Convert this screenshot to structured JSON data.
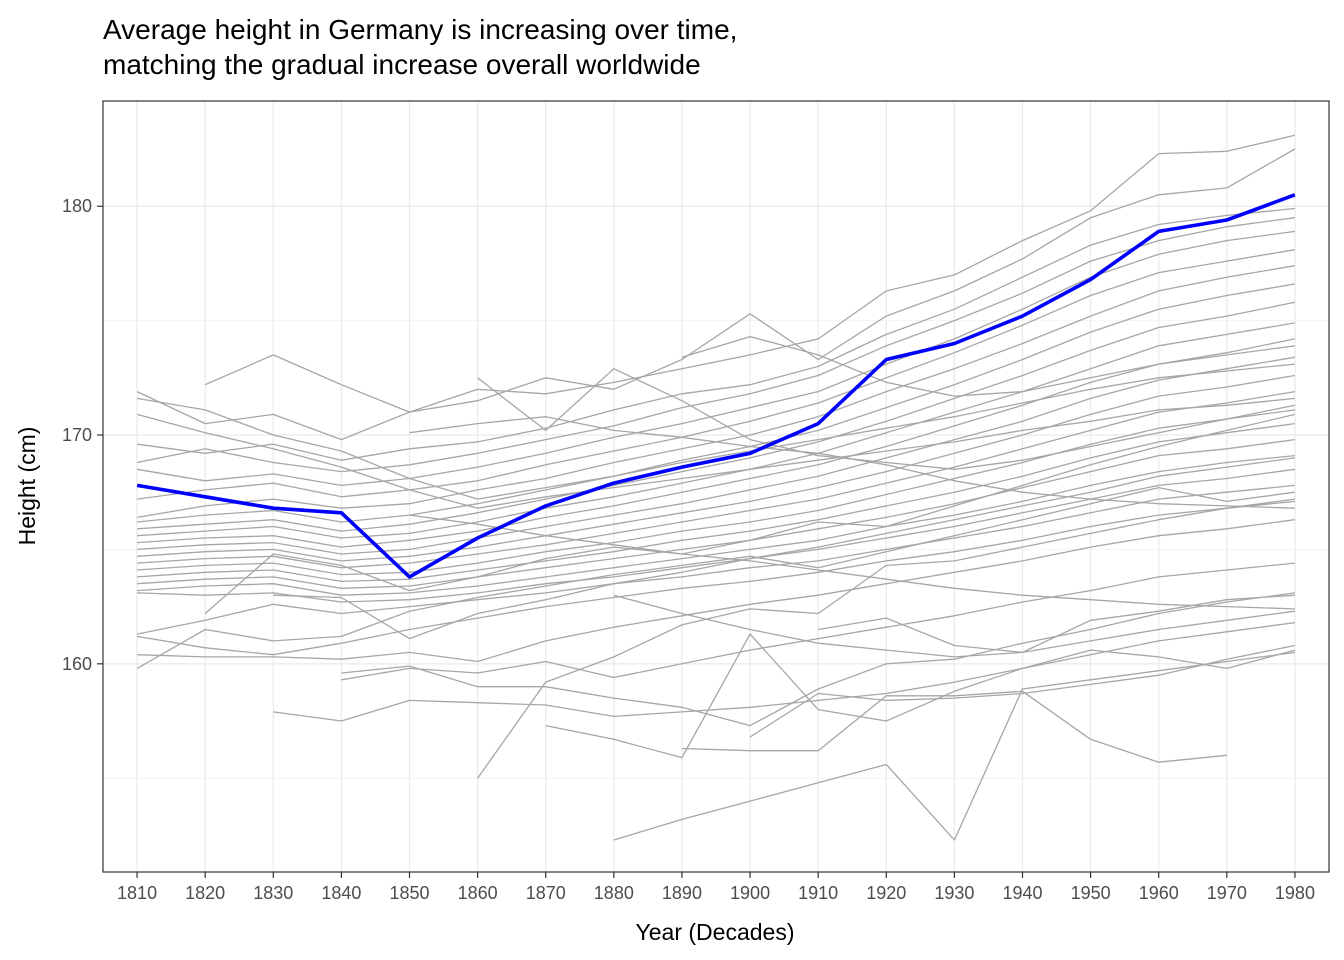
{
  "chart_data": {
    "type": "line",
    "title_lines": [
      "Average height in Germany is increasing over time,",
      "matching the gradual increase overall worldwide"
    ],
    "xlabel": "Year (Decades)",
    "ylabel": "Height (cm)",
    "x": [
      1810,
      1820,
      1830,
      1840,
      1850,
      1860,
      1870,
      1880,
      1890,
      1900,
      1910,
      1920,
      1930,
      1940,
      1950,
      1960,
      1970,
      1980
    ],
    "xlim": [
      1805,
      1985
    ],
    "ylim": [
      150.9,
      184.6
    ],
    "y_ticks": [
      160,
      170,
      180
    ],
    "grid": true,
    "legend": "none",
    "highlight": {
      "name": "Germany",
      "color": "#0000ff",
      "values": [
        167.8,
        167.3,
        166.8,
        166.6,
        163.8,
        165.5,
        166.9,
        167.9,
        168.6,
        169.2,
        170.5,
        173.3,
        174.0,
        175.2,
        176.8,
        178.9,
        179.4,
        180.5
      ]
    },
    "background_series_color": "#a6a6a6",
    "background_series": [
      {
        "values": [
          171.9,
          170.5,
          170.9,
          169.8,
          171.0,
          172.0,
          171.8,
          172.3,
          172.9,
          173.5,
          174.2,
          176.3,
          177.0,
          178.5,
          179.8,
          182.3,
          182.4,
          183.1
        ]
      },
      {
        "values": [
          null,
          172.2,
          173.5,
          172.2,
          171.0,
          171.5,
          172.5,
          172.0,
          173.3,
          175.3,
          173.3,
          175.2,
          176.3,
          177.7,
          179.5,
          180.5,
          180.8,
          182.5
        ]
      },
      {
        "values": [
          169.6,
          169.2,
          169.6,
          168.9,
          169.4,
          169.7,
          170.3,
          171.1,
          171.8,
          172.2,
          173.0,
          174.4,
          175.5,
          176.9,
          178.3,
          179.2,
          179.6,
          179.9
        ]
      },
      {
        "values": [
          168.8,
          169.4,
          168.8,
          168.4,
          168.7,
          169.2,
          169.8,
          170.4,
          171.2,
          171.8,
          172.6,
          173.9,
          175.0,
          176.2,
          177.6,
          178.5,
          179.1,
          179.5
        ]
      },
      {
        "values": [
          168.5,
          168.0,
          168.3,
          167.8,
          168.1,
          168.6,
          169.2,
          169.9,
          170.5,
          171.2,
          171.9,
          173.1,
          174.2,
          175.5,
          176.9,
          177.9,
          178.5,
          178.9
        ]
      },
      {
        "values": [
          167.2,
          167.6,
          167.9,
          167.3,
          167.6,
          168.0,
          168.7,
          169.3,
          169.9,
          170.6,
          171.4,
          172.5,
          173.6,
          174.8,
          176.1,
          177.1,
          177.6,
          178.1
        ]
      },
      {
        "values": [
          166.4,
          166.9,
          167.2,
          166.8,
          167.0,
          167.6,
          168.1,
          168.8,
          169.4,
          170.0,
          170.8,
          171.9,
          172.9,
          174.0,
          175.2,
          176.3,
          176.9,
          177.4
        ]
      },
      {
        "values": [
          166.2,
          166.5,
          166.7,
          166.2,
          166.5,
          167.0,
          167.6,
          168.2,
          168.9,
          169.5,
          170.2,
          171.2,
          172.2,
          173.3,
          174.5,
          175.5,
          176.1,
          176.6
        ]
      },
      {
        "values": [
          165.9,
          166.1,
          166.3,
          165.8,
          166.1,
          166.6,
          167.2,
          167.8,
          168.4,
          169.0,
          169.7,
          170.6,
          171.6,
          172.6,
          173.7,
          174.7,
          175.2,
          175.8
        ]
      },
      {
        "values": [
          165.6,
          165.8,
          166.0,
          165.5,
          165.7,
          166.2,
          166.8,
          167.3,
          167.9,
          168.5,
          169.2,
          170.1,
          171.0,
          171.9,
          172.9,
          173.9,
          174.4,
          174.9
        ]
      },
      {
        "values": [
          165.3,
          165.5,
          165.6,
          165.1,
          165.4,
          165.8,
          166.4,
          166.9,
          167.5,
          168.1,
          168.7,
          169.5,
          170.4,
          171.3,
          172.3,
          173.1,
          173.6,
          174.2
        ]
      },
      {
        "values": [
          165.0,
          165.2,
          165.3,
          164.8,
          165.0,
          165.5,
          166.0,
          166.5,
          167.0,
          167.6,
          168.2,
          169.0,
          169.8,
          170.6,
          171.6,
          172.4,
          172.9,
          173.4
        ]
      },
      {
        "values": [
          164.7,
          164.9,
          165.0,
          164.5,
          164.7,
          165.1,
          165.6,
          166.1,
          166.6,
          167.1,
          167.7,
          168.4,
          169.2,
          170.0,
          170.9,
          171.7,
          172.1,
          172.6
        ]
      },
      {
        "values": [
          164.4,
          164.6,
          164.7,
          164.2,
          164.4,
          164.8,
          165.2,
          165.7,
          166.2,
          166.7,
          167.2,
          167.9,
          168.6,
          169.4,
          170.2,
          171.0,
          171.4,
          171.9
        ]
      },
      {
        "values": [
          164.1,
          164.3,
          164.4,
          163.9,
          164.0,
          164.4,
          164.9,
          165.3,
          165.8,
          166.2,
          166.7,
          167.4,
          168.1,
          168.8,
          169.6,
          170.3,
          170.7,
          171.1
        ]
      },
      {
        "values": [
          163.8,
          164.0,
          164.1,
          163.6,
          163.7,
          164.1,
          164.5,
          164.9,
          165.4,
          165.8,
          166.3,
          166.9,
          167.5,
          168.2,
          169.0,
          169.7,
          170.1,
          170.5
        ]
      },
      {
        "values": [
          163.5,
          163.7,
          163.8,
          163.3,
          163.4,
          163.8,
          164.2,
          164.6,
          165.0,
          165.4,
          165.9,
          166.4,
          167.0,
          167.7,
          168.4,
          169.1,
          169.4,
          169.8
        ]
      },
      {
        "values": [
          163.2,
          163.4,
          163.5,
          163.0,
          163.1,
          163.4,
          163.8,
          164.2,
          164.6,
          165.0,
          165.4,
          166.0,
          166.5,
          167.1,
          167.8,
          168.4,
          168.8,
          169.1
        ]
      },
      {
        "values": [
          163.1,
          163.0,
          163.1,
          162.7,
          162.8,
          163.1,
          163.5,
          163.8,
          164.2,
          164.6,
          165.0,
          165.5,
          166.0,
          166.6,
          167.2,
          167.8,
          168.1,
          168.5
        ]
      },
      {
        "values": [
          161.3,
          161.9,
          162.6,
          162.2,
          162.5,
          162.8,
          163.1,
          163.5,
          163.8,
          164.2,
          164.5,
          165.0,
          165.5,
          166.0,
          166.6,
          167.2,
          167.5,
          167.8
        ]
      },
      {
        "values": [
          161.2,
          160.7,
          160.4,
          160.9,
          161.5,
          162.0,
          162.5,
          162.9,
          163.3,
          163.6,
          164.0,
          164.5,
          164.9,
          165.4,
          166.0,
          166.5,
          166.8,
          167.1
        ]
      },
      {
        "values": [
          160.4,
          160.3,
          160.3,
          160.2,
          160.5,
          160.1,
          161.0,
          161.6,
          162.1,
          162.6,
          163.0,
          163.5,
          164.0,
          164.5,
          165.1,
          165.6,
          165.9,
          166.3
        ]
      },
      {
        "values": [
          159.8,
          161.5,
          161.0,
          161.2,
          162.3,
          162.9,
          163.4,
          163.9,
          164.3,
          164.7,
          164.2,
          164.9,
          165.6,
          166.3,
          167.0,
          167.7,
          167.1,
          167.5
        ]
      },
      {
        "values": [
          null,
          162.2,
          164.8,
          164.3,
          163.2,
          163.8,
          164.6,
          165.1,
          164.8,
          165.4,
          166.2,
          166.0,
          166.9,
          167.8,
          168.7,
          169.5,
          170.2,
          170.9
        ]
      },
      {
        "values": [
          171.6,
          171.1,
          170.0,
          169.3,
          168.1,
          167.2,
          167.7,
          168.2,
          168.8,
          169.3,
          169.8,
          170.3,
          170.8,
          171.4,
          172.0,
          172.5,
          172.8,
          173.1
        ]
      },
      {
        "values": [
          170.9,
          170.1,
          169.4,
          168.6,
          167.6,
          166.8,
          167.3,
          167.7,
          168.1,
          168.5,
          168.9,
          169.3,
          169.7,
          170.2,
          170.6,
          171.1,
          171.3,
          171.6
        ]
      },
      {
        "values": [
          null,
          null,
          163.0,
          162.9,
          161.1,
          162.2,
          162.8,
          163.5,
          164.0,
          164.6,
          165.1,
          165.7,
          166.3,
          166.9,
          167.5,
          168.2,
          168.6,
          169.0
        ]
      },
      {
        "values": [
          null,
          null,
          157.9,
          157.5,
          158.4,
          158.3,
          158.2,
          157.7,
          157.9,
          158.1,
          158.4,
          158.7,
          159.2,
          159.8,
          160.4,
          161.0,
          161.4,
          161.8
        ]
      },
      {
        "values": [
          null,
          null,
          null,
          159.3,
          159.8,
          159.6,
          160.1,
          159.4,
          160.0,
          160.6,
          161.1,
          161.6,
          162.1,
          162.7,
          163.2,
          163.8,
          164.1,
          164.4
        ]
      },
      {
        "values": [
          null,
          null,
          null,
          159.6,
          159.9,
          159.0,
          159.0,
          158.5,
          158.1,
          157.3,
          158.9,
          160.0,
          160.2,
          160.9,
          161.5,
          162.2,
          162.7,
          163.1
        ]
      },
      {
        "values": [
          null,
          null,
          null,
          null,
          null,
          155.0,
          159.2,
          160.3,
          161.7,
          162.4,
          162.2,
          164.3,
          164.5,
          165.1,
          165.7,
          166.3,
          166.8,
          167.2
        ]
      },
      {
        "values": [
          null,
          null,
          null,
          null,
          null,
          null,
          157.3,
          156.7,
          155.9,
          161.3,
          158.0,
          157.5,
          158.8,
          159.8,
          160.6,
          160.3,
          159.8,
          160.6
        ]
      },
      {
        "values": [
          null,
          null,
          null,
          null,
          null,
          null,
          null,
          null,
          156.3,
          156.2,
          156.2,
          158.6,
          158.6,
          158.8,
          156.7,
          155.7,
          156.0,
          null
        ]
      },
      {
        "values": [
          null,
          null,
          null,
          null,
          null,
          null,
          null,
          152.3,
          153.2,
          154.0,
          154.8,
          155.6,
          152.3,
          158.9,
          159.3,
          159.7,
          160.1,
          160.5
        ]
      },
      {
        "values": [
          null,
          null,
          null,
          null,
          null,
          null,
          null,
          null,
          null,
          156.8,
          158.7,
          158.4,
          158.5,
          158.7,
          159.1,
          159.5,
          160.2,
          160.8
        ]
      },
      {
        "values": [
          null,
          null,
          null,
          null,
          null,
          172.5,
          170.2,
          172.9,
          171.5,
          169.8,
          169.1,
          168.8,
          168.5,
          168.9,
          169.5,
          170.1,
          170.7,
          171.3
        ]
      },
      {
        "values": [
          null,
          null,
          null,
          null,
          null,
          null,
          null,
          null,
          173.4,
          174.3,
          173.5,
          172.3,
          171.7,
          171.9,
          172.5,
          173.1,
          173.5,
          173.9
        ]
      },
      {
        "values": [
          null,
          null,
          null,
          null,
          170.1,
          170.5,
          170.8,
          170.2,
          169.9,
          169.5,
          169.2,
          168.7,
          168.0,
          167.5,
          167.2,
          167.0,
          166.9,
          166.8
        ]
      },
      {
        "values": [
          null,
          null,
          null,
          null,
          166.5,
          166.1,
          165.6,
          165.2,
          164.8,
          164.5,
          164.1,
          163.7,
          163.3,
          163.0,
          162.8,
          162.6,
          162.5,
          162.4
        ]
      },
      {
        "values": [
          null,
          null,
          null,
          null,
          null,
          null,
          null,
          null,
          null,
          null,
          161.5,
          162.0,
          160.8,
          160.5,
          161.9,
          162.3,
          162.8,
          163.0
        ]
      },
      {
        "values": [
          null,
          null,
          null,
          null,
          null,
          null,
          null,
          163.0,
          162.2,
          161.5,
          160.9,
          160.6,
          160.3,
          160.5,
          161.0,
          161.5,
          161.9,
          162.3
        ]
      }
    ]
  }
}
